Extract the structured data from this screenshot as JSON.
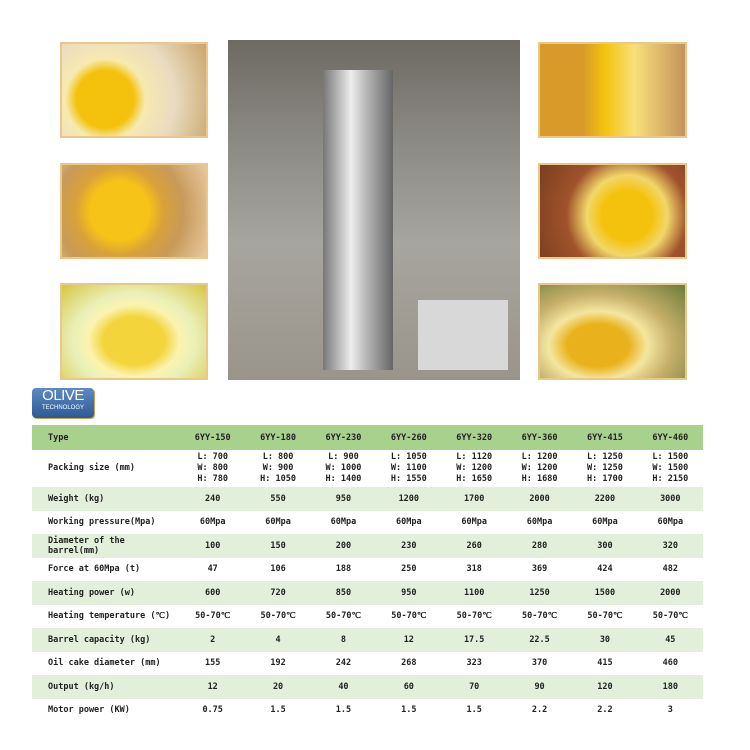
{
  "logo": {
    "line1": "OLIVE",
    "line2": "TECHNOLOGY"
  },
  "photos": [
    "oil-with-peanuts",
    "oil-with-soybeans",
    "oil-with-rapeseed",
    "oil-with-corn",
    "oil-with-flaxseed",
    "oil-with-olives"
  ],
  "main_photo": "hydraulic-oil-press-machine",
  "colors": {
    "header": "#a9d18e",
    "stripe": "#e2efda"
  },
  "table": {
    "header": {
      "label": "Type",
      "values": [
        "6YY-150",
        "6YY-180",
        "6YY-230",
        "6YY-260",
        "6YY-320",
        "6YY-360",
        "6YY-415",
        "6YY-460"
      ]
    },
    "packing": {
      "label": "Packing size (mm)",
      "values": [
        [
          "L: 700",
          "W: 800",
          "H: 780"
        ],
        [
          "L: 800",
          "W: 900",
          "H: 1050"
        ],
        [
          "L: 900",
          "W: 1000",
          "H: 1400"
        ],
        [
          "L: 1050",
          "W: 1100",
          "H: 1550"
        ],
        [
          "L: 1120",
          "W: 1200",
          "H: 1650"
        ],
        [
          "L: 1200",
          "W: 1200",
          "H: 1680"
        ],
        [
          "L: 1250",
          "W: 1250",
          "H: 1700"
        ],
        [
          "L: 1500",
          "W: 1500",
          "H: 2150"
        ]
      ]
    },
    "rows": [
      {
        "label": "Weight (kg)",
        "values": [
          "240",
          "550",
          "950",
          "1200",
          "1700",
          "2000",
          "2200",
          "3000"
        ]
      },
      {
        "label": "Working pressure(Mpa)",
        "values": [
          "60Mpa",
          "60Mpa",
          "60Mpa",
          "60Mpa",
          "60Mpa",
          "60Mpa",
          "60Mpa",
          "60Mpa"
        ]
      },
      {
        "label": "Diameter of the barrel(mm)",
        "values": [
          "100",
          "150",
          "200",
          "230",
          "260",
          "280",
          "300",
          "320"
        ]
      },
      {
        "label": "Force at 60Mpa (t)",
        "values": [
          "47",
          "106",
          "188",
          "250",
          "318",
          "369",
          "424",
          "482"
        ]
      },
      {
        "label": "Heating power (w)",
        "values": [
          "600",
          "720",
          "850",
          "950",
          "1100",
          "1250",
          "1500",
          "2000"
        ]
      },
      {
        "label": "Heating temperature (℃)",
        "values": [
          "50-70℃",
          "50-70℃",
          "50-70℃",
          "50-70℃",
          "50-70℃",
          "50-70℃",
          "50-70℃",
          "50-70℃"
        ]
      },
      {
        "label": "Barrel capacity (kg)",
        "values": [
          "2",
          "4",
          "8",
          "12",
          "17.5",
          "22.5",
          "30",
          "45"
        ]
      },
      {
        "label": "Oil cake diameter (mm)",
        "values": [
          "155",
          "192",
          "242",
          "268",
          "323",
          "370",
          "415",
          "460"
        ]
      },
      {
        "label": "Output (kg/h)",
        "values": [
          "12",
          "20",
          "40",
          "60",
          "70",
          "90",
          "120",
          "180"
        ]
      },
      {
        "label": "Motor power (KW)",
        "values": [
          "0.75",
          "1.5",
          "1.5",
          "1.5",
          "1.5",
          "2.2",
          "2.2",
          "3"
        ]
      }
    ]
  }
}
